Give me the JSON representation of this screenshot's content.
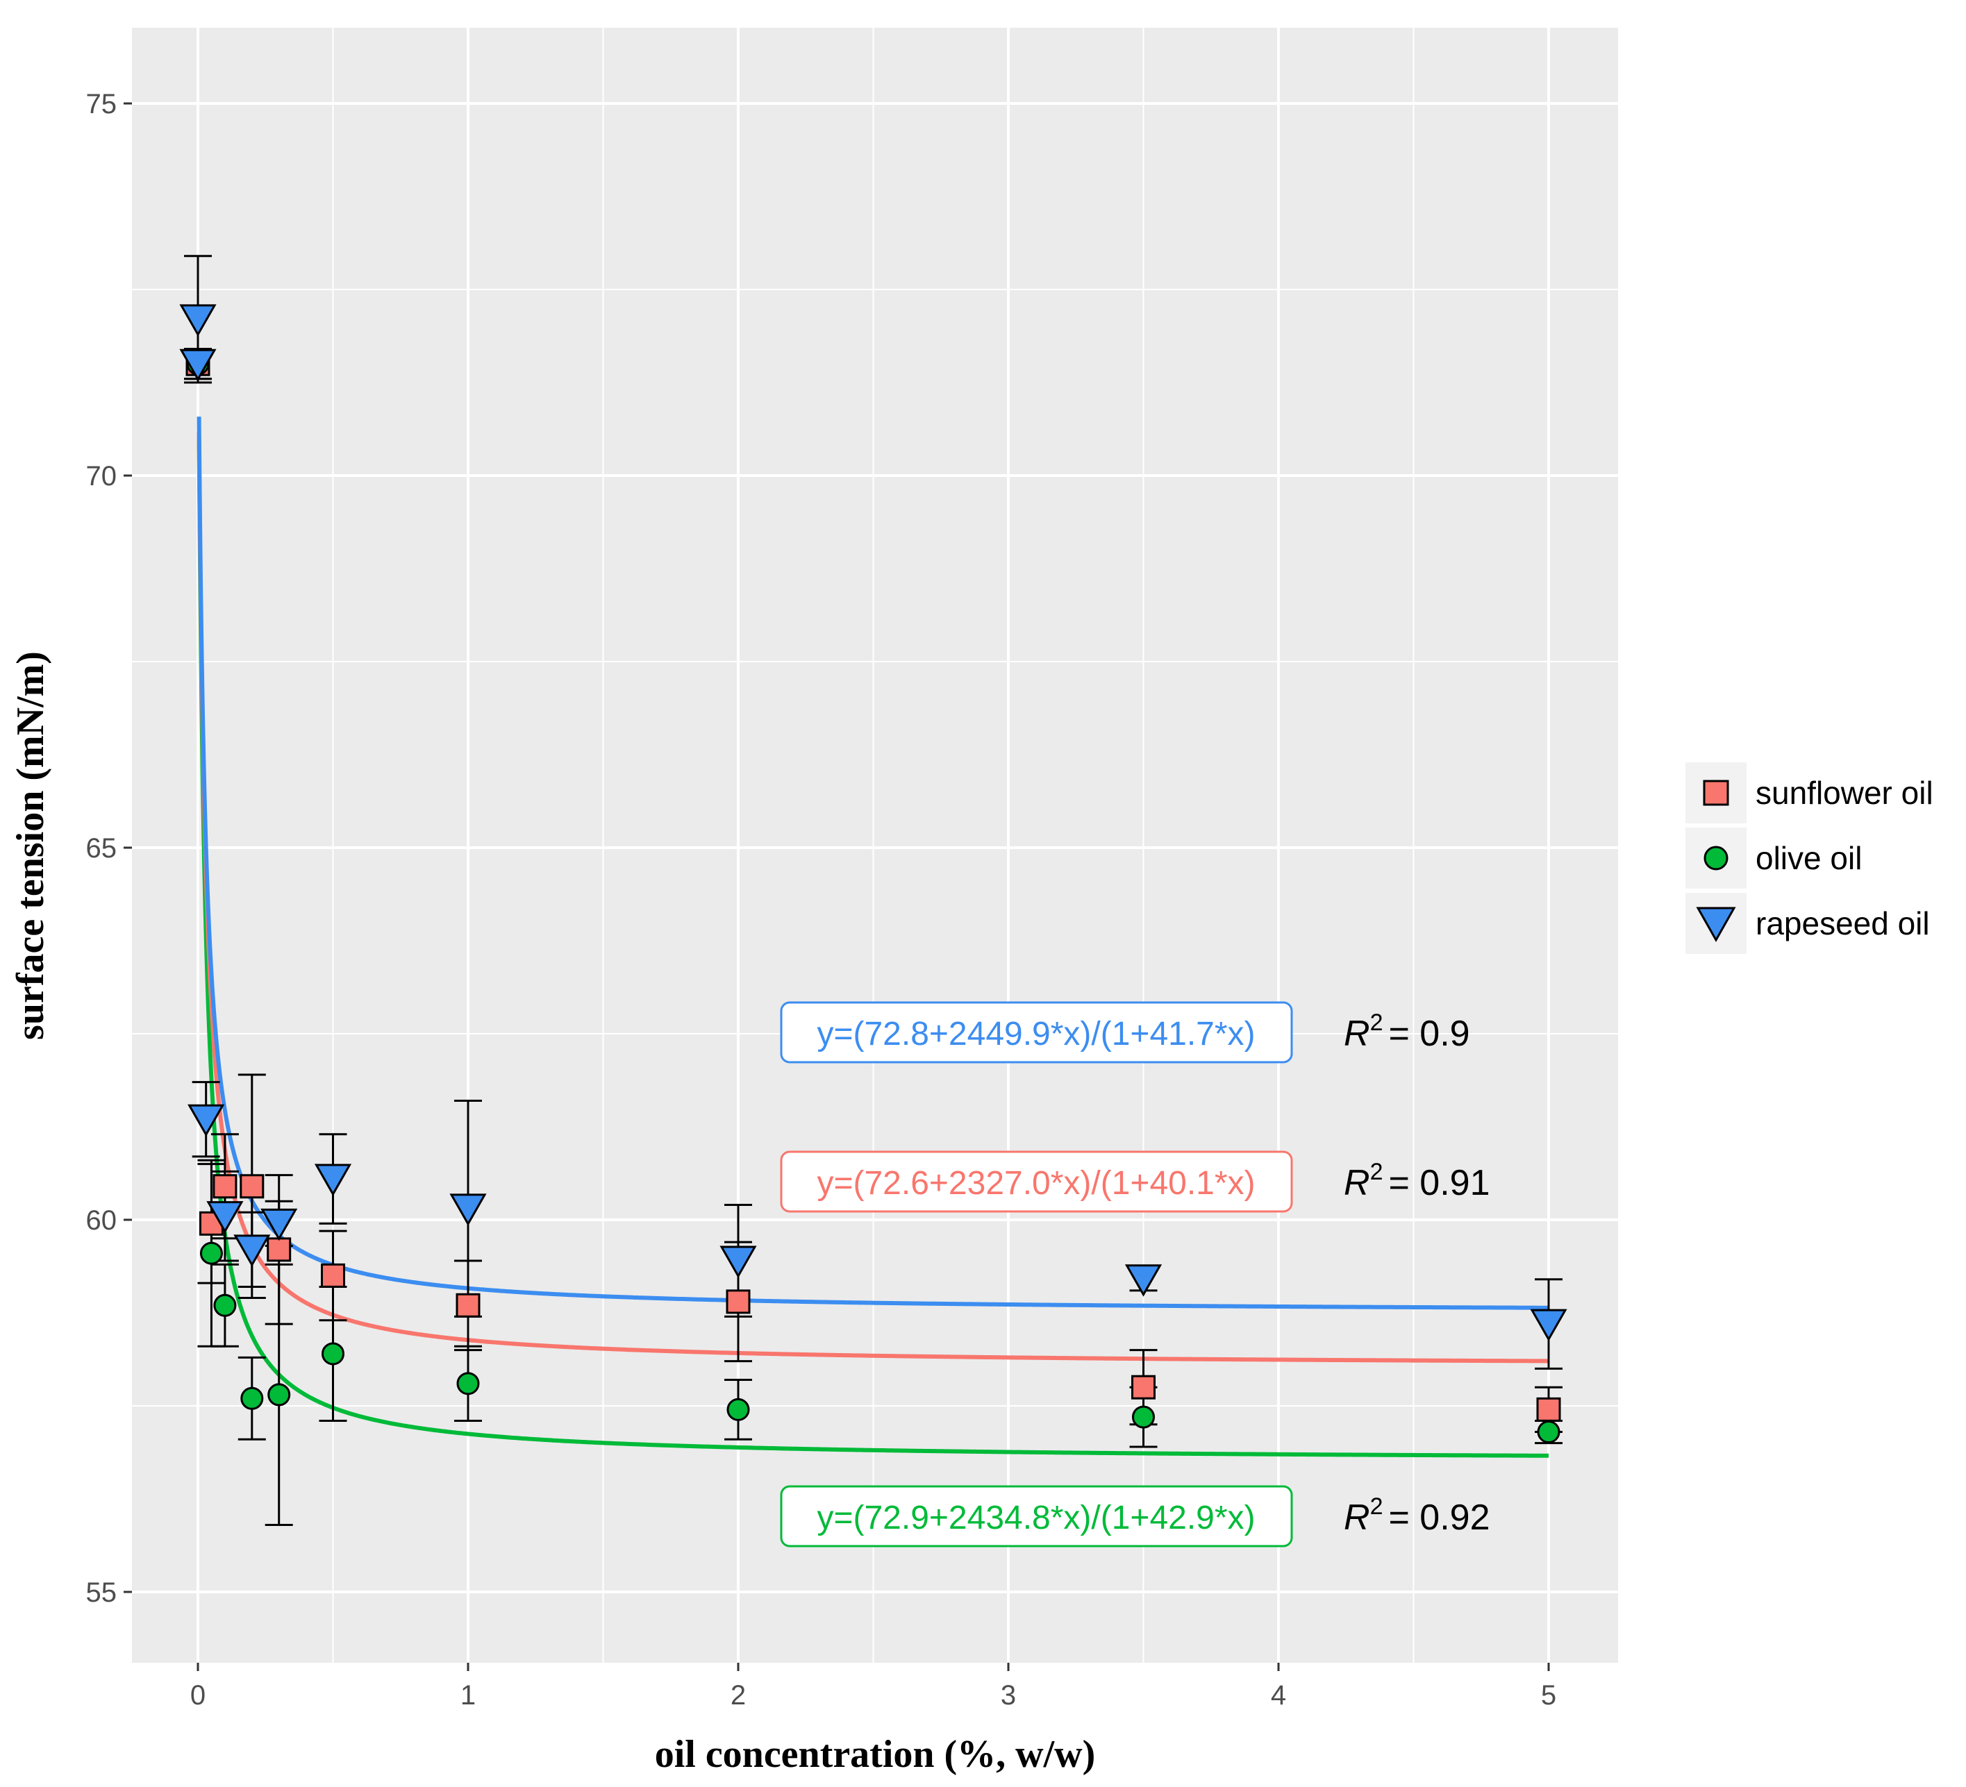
{
  "chart_data": {
    "type": "scatter",
    "title": "",
    "xlabel": "oil concentration (%, w/w)",
    "ylabel": "surface tension (mN/m)",
    "xlim": [
      -0.25,
      5.25
    ],
    "ylim": [
      54.2,
      76.0
    ],
    "x_ticks": [
      0,
      1,
      2,
      3,
      4,
      5
    ],
    "x_tick_labels": [
      "0",
      "1",
      "2",
      "3",
      "4",
      "5"
    ],
    "y_ticks": [
      55,
      60,
      65,
      70,
      75
    ],
    "y_tick_labels": [
      "55",
      "60",
      "65",
      "70",
      "75"
    ],
    "grid": true,
    "legend_position": "right",
    "series": [
      {
        "name": "sunflower oil",
        "color": "#F8766D",
        "marker": "square",
        "fit": {
          "a": 72.6,
          "b": 2327.0,
          "c": 40.1
        },
        "equation": "y=(72.6+2327.0*x)/(1+40.1*x)",
        "r2_label": "R",
        "r2_exponent": "2",
        "r2_value": "= 0.91",
        "points": [
          {
            "x": 0,
            "y": 71.5,
            "err": 0.2
          },
          {
            "x": 0.05,
            "y": 59.95,
            "err": 0.8
          },
          {
            "x": 0.1,
            "y": 60.45,
            "err": 0.7
          },
          {
            "x": 0.2,
            "y": 60.45,
            "err": 1.5
          },
          {
            "x": 0.3,
            "y": 59.6,
            "err": 1.0
          },
          {
            "x": 0.5,
            "y": 59.25,
            "err": 0.6
          },
          {
            "x": 1,
            "y": 58.85,
            "err": 0.6
          },
          {
            "x": 2,
            "y": 58.9,
            "err": 0.8
          },
          {
            "x": 3.5,
            "y": 57.75,
            "err": 0.5
          },
          {
            "x": 5,
            "y": 57.45,
            "err": 0.3
          }
        ]
      },
      {
        "name": "olive oil",
        "color": "#00BA38",
        "marker": "circle",
        "fit": {
          "a": 72.9,
          "b": 2434.8,
          "c": 42.9
        },
        "equation": "y=(72.9+2434.8*x)/(1+42.9*x)",
        "r2_label": "R",
        "r2_exponent": "2",
        "r2_value": "= 0.92",
        "points": [
          {
            "x": 0,
            "y": 71.5,
            "err": 0.2
          },
          {
            "x": 0.05,
            "y": 59.55,
            "err": 1.25
          },
          {
            "x": 0.1,
            "y": 58.85,
            "err": 0.55
          },
          {
            "x": 0.2,
            "y": 57.6,
            "err": 0.55
          },
          {
            "x": 0.3,
            "y": 57.65,
            "err": 1.75
          },
          {
            "x": 0.5,
            "y": 58.2,
            "err": 0.9
          },
          {
            "x": 1,
            "y": 57.8,
            "err": 0.5
          },
          {
            "x": 2,
            "y": 57.45,
            "err": 0.4
          },
          {
            "x": 3.5,
            "y": 57.35,
            "err": 0.4
          },
          {
            "x": 5,
            "y": 57.15,
            "err": 0.15
          }
        ]
      },
      {
        "name": "rapeseed oil",
        "color": "#3C8DF0",
        "marker": "triangle-down",
        "fit": {
          "a": 72.8,
          "b": 2449.9,
          "c": 41.7
        },
        "equation": "y=(72.8+2449.9*x)/(1+41.7*x)",
        "r2_label": "R",
        "r2_exponent": "2",
        "r2_value": "= 0.9",
        "points": [
          {
            "x": 0,
            "y": 72.1,
            "err": 0.85
          },
          {
            "x": 0,
            "y": 71.5,
            "err": 0.2
          },
          {
            "x": 0.03,
            "y": 61.35,
            "err": 0.5
          },
          {
            "x": 0.1,
            "y": 60.05,
            "err": 0.6
          },
          {
            "x": 0.2,
            "y": 59.6,
            "err": 0.5
          },
          {
            "x": 0.3,
            "y": 59.95,
            "err": 0.3
          },
          {
            "x": 0.5,
            "y": 60.55,
            "err": 0.6
          },
          {
            "x": 1,
            "y": 60.15,
            "err": 1.45
          },
          {
            "x": 2,
            "y": 59.45,
            "err": 0.75
          },
          {
            "x": 3.5,
            "y": 59.2,
            "err": 0.15
          },
          {
            "x": 5,
            "y": 58.6,
            "err": 0.6
          }
        ]
      }
    ]
  }
}
